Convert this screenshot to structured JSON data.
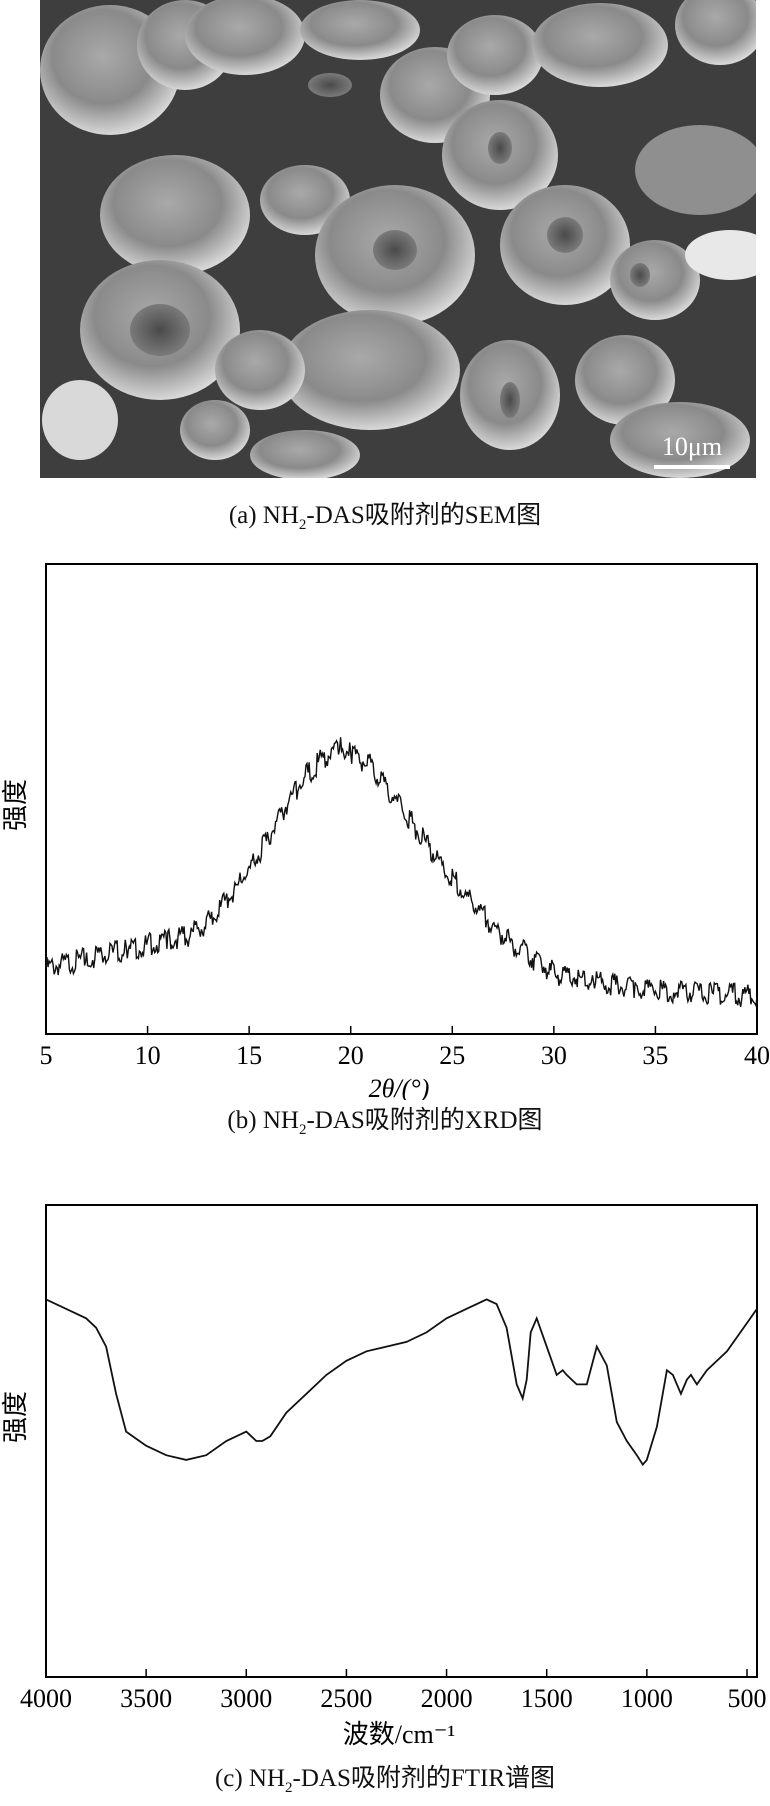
{
  "panel_a": {
    "scale_bar": "10μm",
    "caption": {
      "prefix": "(a) NH",
      "sub": "2",
      "suffix": "-DAS吸附剂的SEM图"
    }
  },
  "panel_b": {
    "caption": {
      "prefix": "(b) NH",
      "sub": "2",
      "suffix": "-DAS吸附剂的XRD图"
    }
  },
  "panel_c": {
    "caption": {
      "prefix": "(c) NH",
      "sub": "2",
      "suffix": "-DAS吸附剂的FTIR谱图"
    }
  },
  "chart_data": [
    {
      "type": "line",
      "xlabel": "2θ/(°)",
      "ylabel": "强度",
      "xlim": [
        5,
        40
      ],
      "xticks": [
        5,
        10,
        15,
        20,
        25,
        30,
        35,
        40
      ],
      "y_ticks_shown": false,
      "grid": false,
      "x": [
        5,
        7,
        9,
        11,
        12,
        13,
        14,
        15,
        16,
        17,
        18,
        19,
        19.5,
        20,
        21,
        22,
        23,
        24,
        25,
        26,
        27,
        28,
        29,
        30,
        32,
        34,
        36,
        38,
        40
      ],
      "y": [
        0.14,
        0.16,
        0.18,
        0.2,
        0.21,
        0.24,
        0.29,
        0.35,
        0.42,
        0.5,
        0.56,
        0.6,
        0.61,
        0.6,
        0.57,
        0.51,
        0.45,
        0.39,
        0.33,
        0.28,
        0.23,
        0.19,
        0.16,
        0.13,
        0.11,
        0.1,
        0.09,
        0.085,
        0.08
      ]
    },
    {
      "type": "line",
      "xlabel": "波数/cm⁻¹",
      "ylabel": "强度",
      "xlim": [
        4000,
        450
      ],
      "xticks": [
        4000,
        3500,
        3000,
        2500,
        2000,
        1500,
        1000,
        500
      ],
      "y_ticks_shown": false,
      "grid": false,
      "x": [
        4000,
        3900,
        3800,
        3750,
        3700,
        3650,
        3600,
        3500,
        3400,
        3300,
        3200,
        3100,
        3000,
        2950,
        2920,
        2880,
        2800,
        2700,
        2600,
        2500,
        2400,
        2300,
        2200,
        2100,
        2000,
        1900,
        1800,
        1750,
        1700,
        1650,
        1620,
        1600,
        1580,
        1550,
        1500,
        1450,
        1420,
        1400,
        1350,
        1300,
        1250,
        1200,
        1150,
        1100,
        1050,
        1020,
        1000,
        950,
        900,
        870,
        830,
        800,
        780,
        750,
        700,
        600,
        500,
        450
      ],
      "y": [
        0.8,
        0.78,
        0.76,
        0.74,
        0.7,
        0.6,
        0.52,
        0.49,
        0.47,
        0.46,
        0.47,
        0.5,
        0.52,
        0.5,
        0.5,
        0.51,
        0.56,
        0.6,
        0.64,
        0.67,
        0.69,
        0.7,
        0.71,
        0.73,
        0.76,
        0.78,
        0.8,
        0.79,
        0.74,
        0.62,
        0.59,
        0.63,
        0.73,
        0.76,
        0.7,
        0.64,
        0.65,
        0.64,
        0.62,
        0.62,
        0.7,
        0.66,
        0.54,
        0.5,
        0.47,
        0.45,
        0.46,
        0.53,
        0.65,
        0.64,
        0.6,
        0.63,
        0.64,
        0.62,
        0.65,
        0.69,
        0.75,
        0.78
      ]
    }
  ]
}
